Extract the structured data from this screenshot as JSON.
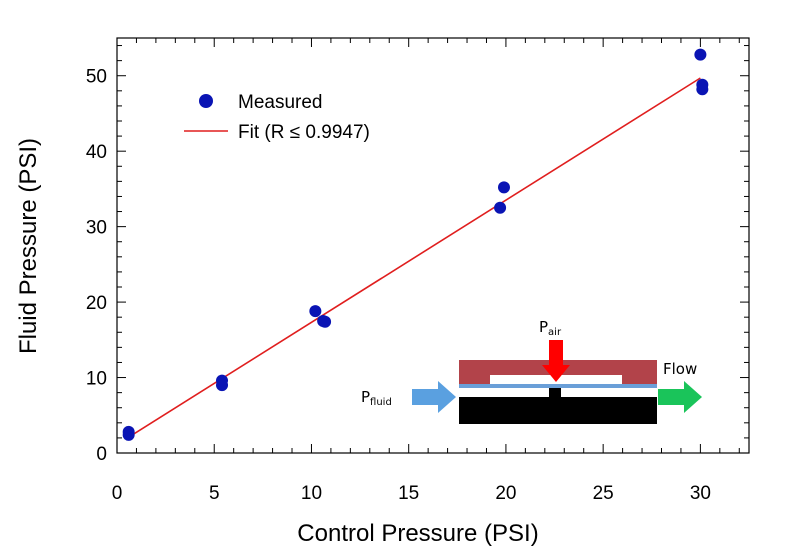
{
  "chart_data": {
    "type": "scatter",
    "xlabel": "Control Pressure (PSI)",
    "ylabel": "Fluid Pressure (PSI)",
    "xlim": [
      0,
      32.5
    ],
    "ylim": [
      0,
      55
    ],
    "x_ticks": [
      0,
      5,
      10,
      15,
      20,
      25,
      30
    ],
    "y_ticks": [
      0,
      10,
      20,
      30,
      40,
      50
    ],
    "grid": false,
    "legend_position": "top-left",
    "series": [
      {
        "name": "Measured",
        "kind": "scatter",
        "color": "#0a14b4",
        "points": [
          {
            "x": 0.6,
            "y": 2.4
          },
          {
            "x": 0.6,
            "y": 2.8
          },
          {
            "x": 5.4,
            "y": 9.0
          },
          {
            "x": 5.4,
            "y": 9.6
          },
          {
            "x": 10.2,
            "y": 18.8
          },
          {
            "x": 10.6,
            "y": 17.5
          },
          {
            "x": 10.7,
            "y": 17.4
          },
          {
            "x": 19.7,
            "y": 32.5
          },
          {
            "x": 19.9,
            "y": 35.2
          },
          {
            "x": 30.0,
            "y": 52.8
          },
          {
            "x": 30.1,
            "y": 48.8
          },
          {
            "x": 30.1,
            "y": 48.2
          }
        ]
      },
      {
        "name": "Fit (R ≤ 0.9947)",
        "kind": "line",
        "color": "#e01e1e",
        "points": [
          {
            "x": 0.6,
            "y": 2.1
          },
          {
            "x": 30.0,
            "y": 49.7
          }
        ]
      }
    ],
    "inset": {
      "labels": {
        "p_air_main": "P",
        "p_air_sub": "air",
        "p_fluid_main": "P",
        "p_fluid_sub": "fluid",
        "flow": "Flow"
      },
      "colors": {
        "top_block": "#b2434a",
        "bottom_block": "#000000",
        "membrane": "#6a9fd8",
        "air_arrow": "#ff0000",
        "fluid_arrow": "#5aa0e0",
        "flow_arrow": "#1ac45a"
      }
    }
  }
}
